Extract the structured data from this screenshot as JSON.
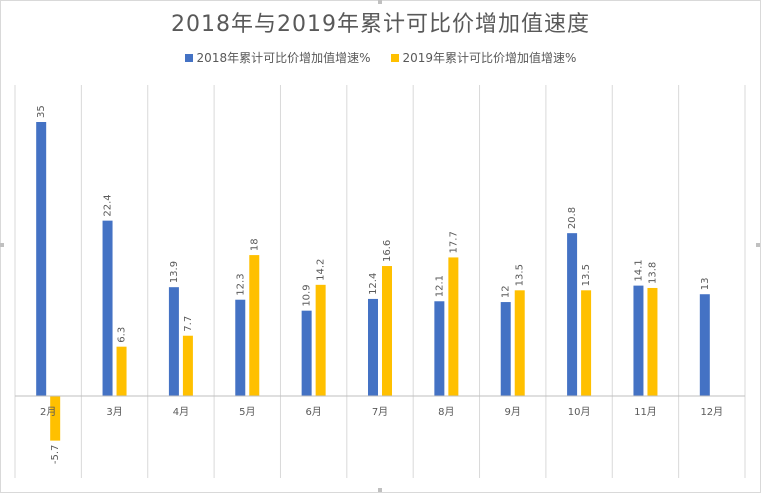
{
  "chart_data": {
    "type": "bar",
    "title": "2018年与2019年累计可比价增加值速度",
    "categories": [
      "2月",
      "3月",
      "4月",
      "5月",
      "6月",
      "7月",
      "8月",
      "9月",
      "10月",
      "11月",
      "12月"
    ],
    "series": [
      {
        "name": "2018年累计可比价增加值增速%",
        "color": "#4472c4",
        "values": [
          35,
          22.4,
          13.9,
          12.3,
          10.9,
          12.4,
          12.1,
          12,
          20.8,
          14.1,
          13
        ]
      },
      {
        "name": "2019年累计可比价增加值增速%",
        "color": "#ffc000",
        "values": [
          -5.7,
          6.3,
          7.7,
          18,
          14.2,
          16.6,
          17.7,
          13.5,
          13.5,
          13.8,
          null
        ]
      }
    ],
    "xlabel": "",
    "ylabel": "",
    "ylim": [
      -6,
      36
    ],
    "grid": "vertical",
    "legend": "top"
  }
}
